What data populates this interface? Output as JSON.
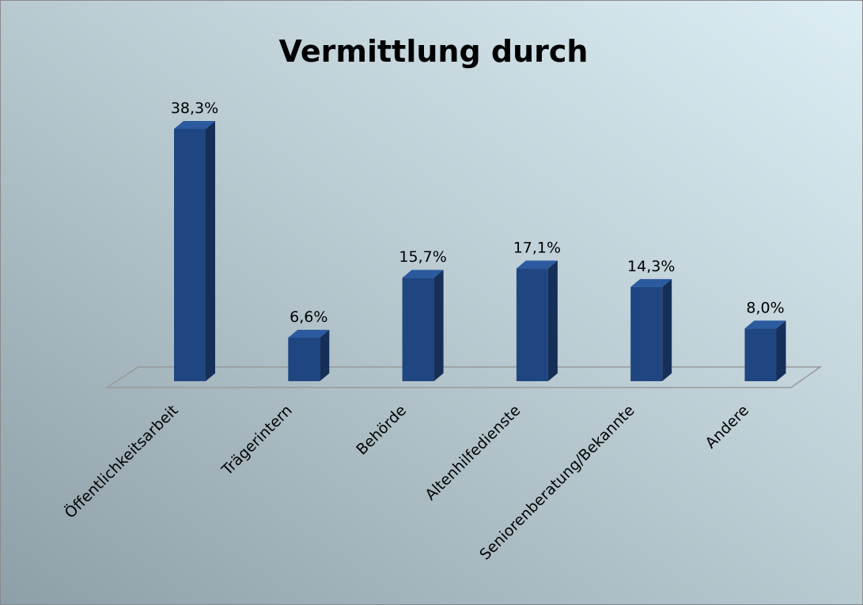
{
  "chart_data": {
    "type": "bar3d",
    "title": "Vermittlung durch",
    "categories": [
      "Öffentlichkeitsarbeit",
      "Trägerintern",
      "Behörde",
      "Altenhilfedienste",
      "Seniorenberatung/Bekannte",
      "Andere"
    ],
    "values": [
      38.3,
      6.6,
      15.7,
      17.1,
      14.3,
      8.0
    ],
    "value_labels": [
      "38,3%",
      "6,6%",
      "15,7%",
      "17,1%",
      "14,3%",
      "8,0%"
    ],
    "color": "#1f4680"
  }
}
